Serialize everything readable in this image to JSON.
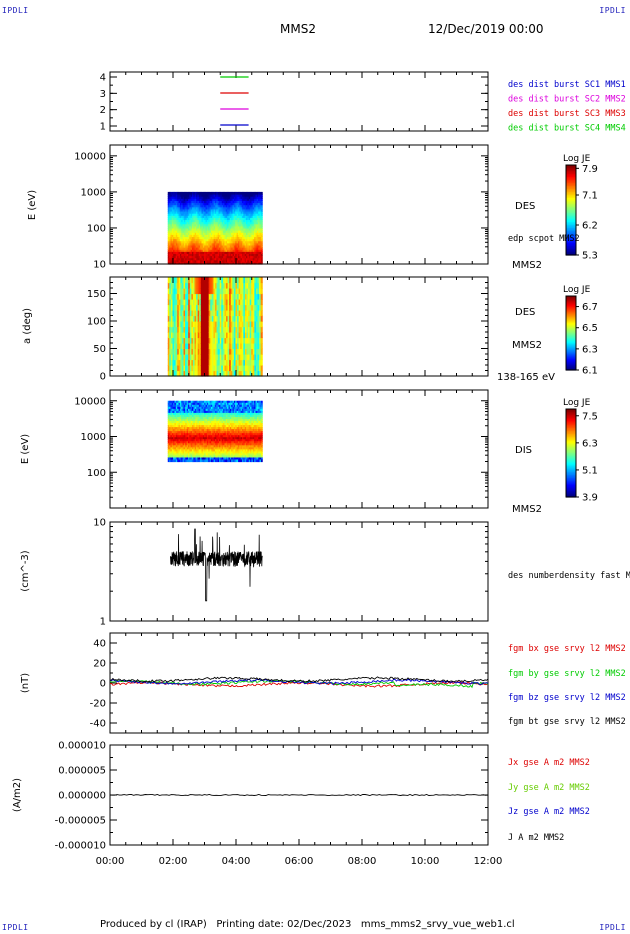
{
  "corners": {
    "top_left": "IPDLI",
    "top_right": "IPDLI",
    "bottom_left": "IPDLI",
    "bottom_right": "IPDLI"
  },
  "header": {
    "spacecraft": "MMS2",
    "date": "12/Dec/2019 00:00"
  },
  "footer": {
    "text": "Produced by cl (IRAP)   Printing date: 02/Dec/2023   mms_mms2_srvy_vue_web1.cl"
  },
  "colors": {
    "c_blue": "#0000cc",
    "c_magenta": "#dd00dd",
    "c_red": "#dd0000",
    "c_green": "#00cc00",
    "c_green_light": "#66cc00",
    "c_black": "#000000"
  },
  "chart_data": {
    "type": "timeseries-panels",
    "time_axis": {
      "tick_labels": [
        "00:00",
        "02:00",
        "04:00",
        "06:00",
        "08:00",
        "10:00",
        "12:00"
      ]
    },
    "panels": [
      {
        "id": "coverage",
        "type": "line",
        "yticks": [
          "4",
          "3",
          "2",
          "1"
        ],
        "legend": [
          {
            "label": "des dist burst SC1 MMS1",
            "color": "#0000cc"
          },
          {
            "label": "des dist burst SC2 MMS2",
            "color": "#dd00dd"
          },
          {
            "label": "des dist burst SC3 MMS3",
            "color": "#dd0000"
          },
          {
            "label": "des dist burst SC4 MMS4",
            "color": "#00cc00"
          }
        ]
      },
      {
        "id": "des_energy",
        "type": "heatmap",
        "ylabel": "E (eV)",
        "yscale": "log",
        "ylim": [
          10,
          20000
        ],
        "yticks": [
          "10000",
          "1000",
          "100",
          "10"
        ],
        "data_time_range": [
          "01:50",
          "04:50"
        ],
        "colorbar": {
          "title": "Log JE",
          "ticks": [
            "7.9",
            "7.1",
            "6.2",
            "5.3"
          ],
          "range": [
            5.3,
            8.0
          ]
        },
        "labels": [
          "DES",
          "edp scpot MMS2",
          "MMS2"
        ]
      },
      {
        "id": "des_pitch",
        "type": "heatmap",
        "ylabel": "a (deg)",
        "ylim": [
          0,
          180
        ],
        "yticks": [
          "150",
          "100",
          "50",
          "0"
        ],
        "data_time_range": [
          "01:50",
          "04:50"
        ],
        "colorbar": {
          "title": "Log JE",
          "ticks": [
            "6.7",
            "6.5",
            "6.3",
            "6.1"
          ],
          "range": [
            6.1,
            6.8
          ]
        },
        "labels": [
          "DES",
          "MMS2",
          "138-165 eV"
        ]
      },
      {
        "id": "dis_energy",
        "type": "heatmap",
        "ylabel": "E (eV)",
        "yscale": "log",
        "ylim": [
          10,
          20000
        ],
        "yticks": [
          "10000",
          "1000",
          "100"
        ],
        "data_time_range": [
          "01:50",
          "04:50"
        ],
        "colorbar": {
          "title": "Log JE",
          "ticks": [
            "7.5",
            "6.3",
            "5.1",
            "3.9"
          ],
          "range": [
            3.9,
            7.8
          ]
        },
        "labels": [
          "DIS",
          "MMS2"
        ]
      },
      {
        "id": "density",
        "type": "line",
        "ylabel": "(cm^-3)",
        "yscale": "log",
        "ylim": [
          1,
          10
        ],
        "yticks": [
          "10",
          "1"
        ],
        "data_time_range": [
          "01:55",
          "04:50"
        ],
        "typical_value": 4.3,
        "series": [
          {
            "name": "des numberdensity fast M",
            "color": "#000000"
          }
        ]
      },
      {
        "id": "bfield",
        "type": "line",
        "ylabel": "(nT)",
        "ylim": [
          -50,
          50
        ],
        "yticks": [
          "40",
          "20",
          "0",
          "-20",
          "-40"
        ],
        "series": [
          {
            "name": "fgm bx gse srvy l2 MMS2",
            "color": "#dd0000"
          },
          {
            "name": "fgm by gse srvy l2 MMS2",
            "color": "#00cc00"
          },
          {
            "name": "fgm bz gse srvy l2 MMS2",
            "color": "#0000cc"
          },
          {
            "name": "fgm bt gse srvy l2 MMS2",
            "color": "#000000"
          }
        ]
      },
      {
        "id": "current",
        "type": "line",
        "ylabel": "(A/m2)",
        "ylim": [
          -1e-05,
          1e-05
        ],
        "yticks": [
          "0.000010",
          "0.000005",
          "0.000000",
          "-0.000005",
          "-0.000010"
        ],
        "series": [
          {
            "name": "Jx gse A m2 MMS2",
            "color": "#dd0000"
          },
          {
            "name": "Jy gse A m2 MMS2",
            "color": "#66cc00"
          },
          {
            "name": "Jz gse A m2 MMS2",
            "color": "#0000cc"
          },
          {
            "name": "J A m2 MMS2",
            "color": "#000000"
          }
        ]
      }
    ]
  }
}
